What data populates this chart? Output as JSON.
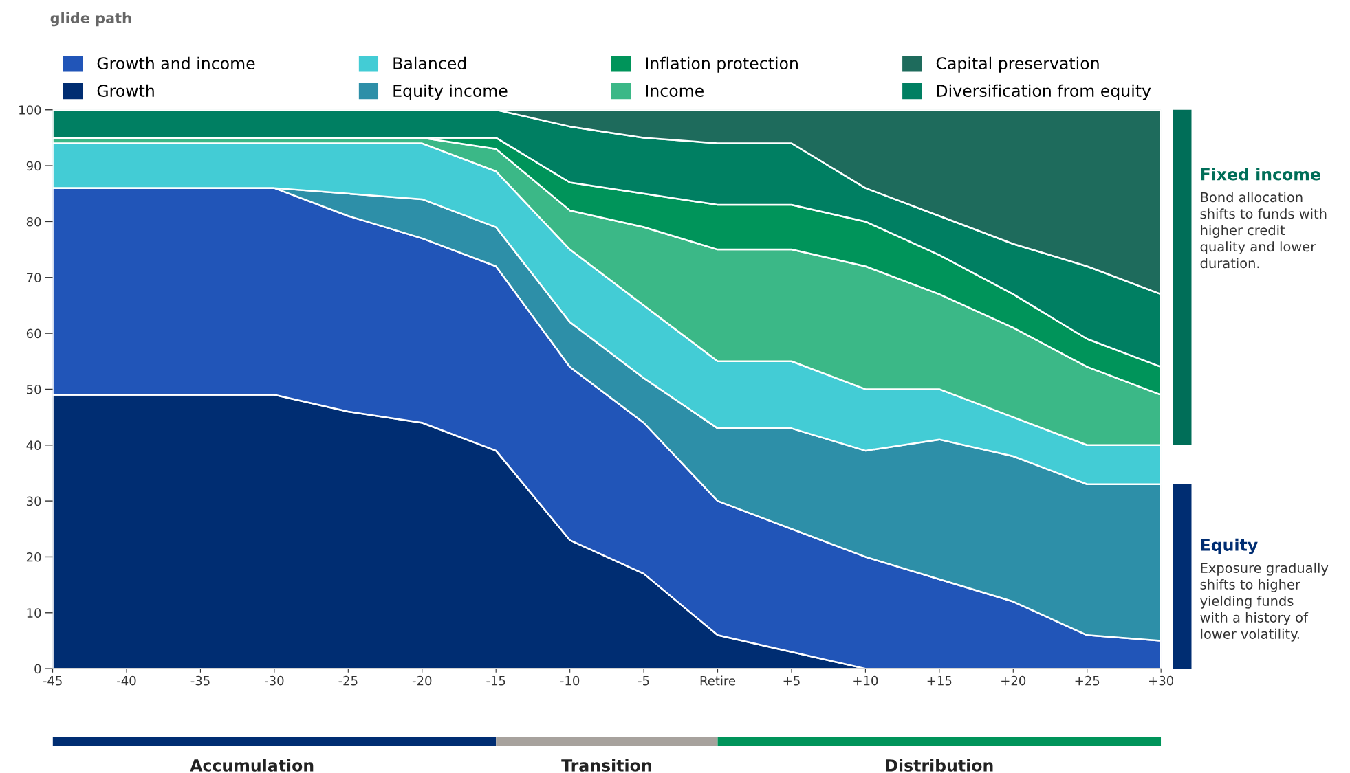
{
  "chart_data": {
    "type": "area",
    "stacked": true,
    "title": "glide path",
    "categories": [
      "-45",
      "-40",
      "-35",
      "-30",
      "-25",
      "-20",
      "-15",
      "-10",
      "-5",
      "Retire",
      "+5",
      "+10",
      "+15",
      "+20",
      "+25",
      "+30"
    ],
    "series": [
      {
        "name": "Growth",
        "color": "#002d72",
        "values": [
          49,
          49,
          49,
          49,
          46,
          44,
          39,
          23,
          17,
          6,
          3,
          0,
          0,
          0,
          0,
          0
        ]
      },
      {
        "name": "Growth and income",
        "color": "#2155b8",
        "values": [
          37,
          37,
          37,
          37,
          35,
          33,
          33,
          31,
          27,
          24,
          22,
          20,
          16,
          12,
          6,
          5
        ]
      },
      {
        "name": "Equity income",
        "color": "#2d8fa8",
        "values": [
          0,
          0,
          0,
          0,
          4,
          7,
          7,
          8,
          8,
          13,
          18,
          19,
          25,
          26,
          27,
          28
        ]
      },
      {
        "name": "Balanced",
        "color": "#43ccd5",
        "values": [
          8,
          8,
          8,
          8,
          9,
          10,
          10,
          13,
          13,
          12,
          12,
          11,
          9,
          7,
          7,
          7
        ]
      },
      {
        "name": "Income",
        "color": "#3bb887",
        "values": [
          1,
          1,
          1,
          1,
          1,
          1,
          4,
          7,
          14,
          20,
          20,
          22,
          17,
          16,
          14,
          9
        ]
      },
      {
        "name": "Inflation protection",
        "color": "#00945a",
        "values": [
          0,
          0,
          0,
          0,
          0,
          0,
          2,
          5,
          6,
          8,
          8,
          8,
          7,
          6,
          5,
          5
        ]
      },
      {
        "name": "Diversification from equity",
        "color": "#007f62",
        "values": [
          5,
          5,
          5,
          5,
          5,
          5,
          5,
          10,
          10,
          11,
          11,
          6,
          7,
          9,
          13,
          13
        ]
      },
      {
        "name": "Capital preservation",
        "color": "#1e6b5c",
        "values": [
          0,
          0,
          0,
          0,
          0,
          0,
          0,
          3,
          5,
          6,
          6,
          14,
          19,
          24,
          28,
          33
        ]
      }
    ],
    "ylim": [
      0,
      100
    ],
    "yticks": [
      0,
      10,
      20,
      30,
      40,
      50,
      60,
      70,
      80,
      90,
      100
    ],
    "grid": false,
    "legend": "top",
    "annotations": [
      "Fixed income",
      "Bond allocation\nshifts to funds with\nhigher credit\nquality and lower\nduration.",
      "Equity",
      "Exposure gradually\nshifts to higher\nyielding funds\nwith a history of\nlower volatility.",
      "Accumulation",
      "Transition",
      "Distribution"
    ]
  }
}
